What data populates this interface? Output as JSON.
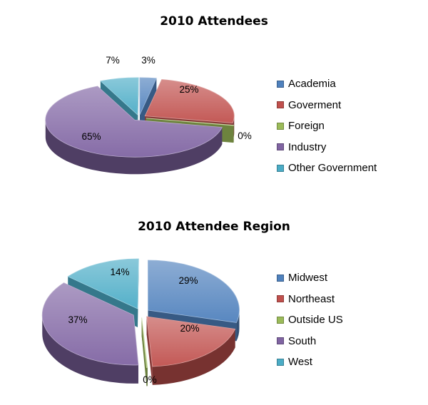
{
  "chart_data": [
    {
      "type": "pie",
      "style": "3d-exploded",
      "title": "2010 Attendees",
      "legend_position": "right",
      "slices": [
        {
          "label": "Academia",
          "value": 3,
          "display": "3%",
          "color": "#4f81bd"
        },
        {
          "label": "Goverment",
          "value": 25,
          "display": "25%",
          "color": "#c0504d"
        },
        {
          "label": "Foreign",
          "value": 0,
          "display": "0%",
          "color": "#9bbb59"
        },
        {
          "label": "Industry",
          "value": 65,
          "display": "65%",
          "color": "#8064a2"
        },
        {
          "label": "Other Government",
          "value": 7,
          "display": "7%",
          "color": "#4bacc6"
        }
      ]
    },
    {
      "type": "pie",
      "style": "3d-exploded",
      "title": "2010 Attendee Region",
      "legend_position": "right",
      "slices": [
        {
          "label": "Midwest",
          "value": 29,
          "display": "29%",
          "color": "#4f81bd"
        },
        {
          "label": "Northeast",
          "value": 20,
          "display": "20%",
          "color": "#c0504d"
        },
        {
          "label": "Outside US",
          "value": 0,
          "display": "0%",
          "color": "#9bbb59"
        },
        {
          "label": "South",
          "value": 37,
          "display": "37%",
          "color": "#8064a2"
        },
        {
          "label": "West",
          "value": 14,
          "display": "14%",
          "color": "#4bacc6"
        }
      ]
    }
  ]
}
